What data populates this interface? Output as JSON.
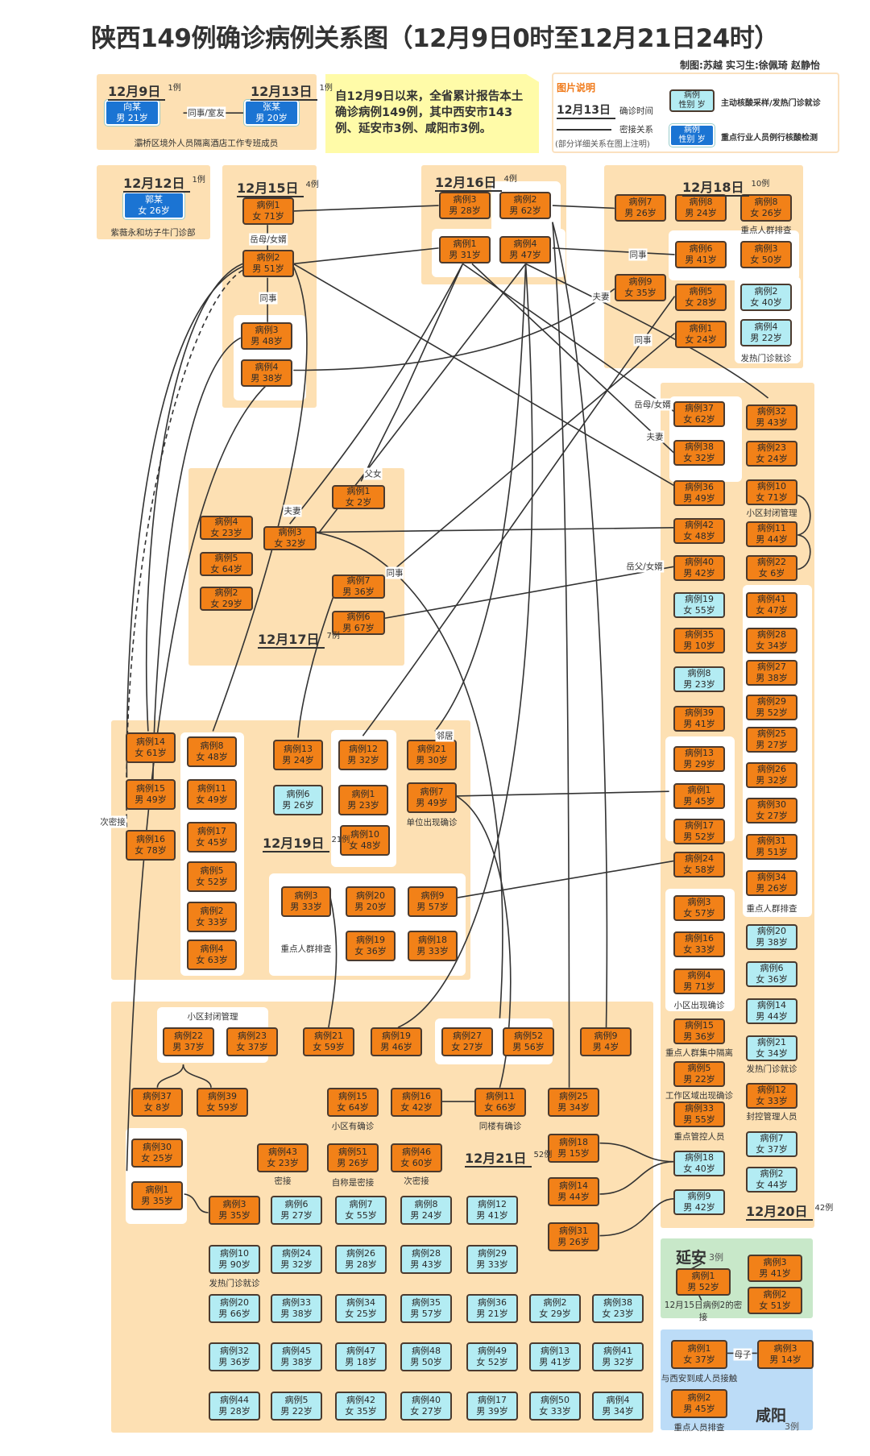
{
  "title": "陕西149例确诊病例关系图（12月9日0时至12月21日24时）",
  "credits": "制图:苏越  实习生:徐佩琦 赵静怡",
  "summary": "自12月9日以来，全省累计报告本土确诊病例149例，其中西安市143例、延安市3例、咸阳市3例。",
  "legend": {
    "title": "图片说明",
    "date_sample": "12月13日",
    "date_desc": "确诊时间",
    "line_desc": "密接关系",
    "line_note": "(部分详细关系在图上注明)",
    "swatch_name": "病例",
    "swatch_info": "性别 岁",
    "cyan_desc": "主动核酸采样/发热门诊就诊",
    "blue_desc": "重点行业人员例行核酸检测",
    "colors": {
      "orange": "#f28118",
      "cyan": "#b3ecf3",
      "blue": "#1b74d3",
      "background": "#fde0b3"
    }
  },
  "top": {
    "relation": "同事/室友",
    "note": "灞桥区境外人员隔离酒店工作专班成员"
  },
  "s1209": {
    "date": "12月9日",
    "count": "1例",
    "cases": [
      {
        "name": "向某",
        "info": "男 21岁",
        "style": "blue"
      }
    ]
  },
  "s1213": {
    "date": "12月13日",
    "count": "1例",
    "cases": [
      {
        "name": "张某",
        "info": "男 20岁",
        "style": "blue"
      }
    ]
  },
  "s1212": {
    "date": "12月12日",
    "count": "1例",
    "note": "紫薇永和坊子牛门诊部",
    "cases": [
      {
        "name": "郭某",
        "info": "女 26岁",
        "style": "blue"
      }
    ]
  },
  "s1215": {
    "date": "12月15日",
    "count": "4例",
    "labels": [
      "岳母/女婿",
      "同事"
    ],
    "cases": [
      {
        "name": "病例1",
        "info": "女 71岁",
        "style": "orange"
      },
      {
        "name": "病例2",
        "info": "男 51岁",
        "style": "orange"
      },
      {
        "name": "病例3",
        "info": "男 48岁",
        "style": "orange"
      },
      {
        "name": "病例4",
        "info": "男 38岁",
        "style": "orange"
      }
    ]
  },
  "s1216": {
    "date": "12月16日",
    "count": "4例",
    "cases": [
      {
        "name": "病例3",
        "info": "男 28岁",
        "style": "orange"
      },
      {
        "name": "病例2",
        "info": "男 62岁",
        "style": "orange"
      },
      {
        "name": "病例1",
        "info": "男 31岁",
        "style": "orange"
      },
      {
        "name": "病例4",
        "info": "男 47岁",
        "style": "orange"
      }
    ]
  },
  "s1218": {
    "date": "12月18日",
    "count": "10例",
    "notes": [
      "重点人群排查",
      "发热门诊就诊"
    ],
    "labels": [
      "同事",
      "夫妻",
      "同事"
    ],
    "cases": [
      {
        "name": "病例7",
        "info": "男 26岁",
        "style": "orange"
      },
      {
        "name": "病例8",
        "info": "男 24岁",
        "style": "orange"
      },
      {
        "name": "病例8",
        "info": "女 26岁",
        "style": "orange"
      },
      {
        "name": "病例6",
        "info": "男 41岁",
        "style": "orange"
      },
      {
        "name": "病例3",
        "info": "女 50岁",
        "style": "orange"
      },
      {
        "name": "病例9",
        "info": "女 35岁",
        "style": "orange"
      },
      {
        "name": "病例5",
        "info": "女 28岁",
        "style": "orange"
      },
      {
        "name": "病例1",
        "info": "女 24岁",
        "style": "orange"
      },
      {
        "name": "病例2",
        "info": "女 40岁",
        "style": "cyan"
      },
      {
        "name": "病例4",
        "info": "男 22岁",
        "style": "cyan"
      }
    ]
  },
  "s1217": {
    "date": "12月17日",
    "count": "7例",
    "labels": [
      "夫妻",
      "父女",
      "同事"
    ],
    "cases": [
      {
        "name": "病例4",
        "info": "女 23岁",
        "style": "orange"
      },
      {
        "name": "病例5",
        "info": "女 64岁",
        "style": "orange"
      },
      {
        "name": "病例2",
        "info": "女 29岁",
        "style": "orange"
      },
      {
        "name": "病例3",
        "info": "女 32岁",
        "style": "orange"
      },
      {
        "name": "病例1",
        "info": "女 2岁",
        "style": "orange"
      },
      {
        "name": "病例7",
        "info": "男 36岁",
        "style": "orange"
      },
      {
        "name": "病例6",
        "info": "男 67岁",
        "style": "orange"
      }
    ]
  },
  "s1219": {
    "date": "12月19日",
    "count": "21例",
    "notes": [
      "单位出现确诊",
      "重点人群排查"
    ],
    "labels": [
      "次密接",
      "邻居"
    ],
    "cases": [
      {
        "name": "病例14",
        "info": "女 61岁",
        "style": "orange"
      },
      {
        "name": "病例15",
        "info": "男 49岁",
        "style": "orange"
      },
      {
        "name": "病例16",
        "info": "女 78岁",
        "style": "orange"
      },
      {
        "name": "病例8",
        "info": "女 48岁",
        "style": "orange"
      },
      {
        "name": "病例11",
        "info": "女 49岁",
        "style": "orange"
      },
      {
        "name": "病例17",
        "info": "女 45岁",
        "style": "orange"
      },
      {
        "name": "病例5",
        "info": "女 52岁",
        "style": "orange"
      },
      {
        "name": "病例2",
        "info": "女 33岁",
        "style": "orange"
      },
      {
        "name": "病例4",
        "info": "女 63岁",
        "style": "orange"
      },
      {
        "name": "病例13",
        "info": "男 24岁",
        "style": "orange"
      },
      {
        "name": "病例6",
        "info": "男 26岁",
        "style": "cyan"
      },
      {
        "name": "病例12",
        "info": "男 32岁",
        "style": "orange"
      },
      {
        "name": "病例1",
        "info": "男 23岁",
        "style": "orange"
      },
      {
        "name": "病例10",
        "info": "女 48岁",
        "style": "orange"
      },
      {
        "name": "病例21",
        "info": "男 30岁",
        "style": "orange"
      },
      {
        "name": "病例7",
        "info": "男 49岁",
        "style": "orange"
      },
      {
        "name": "病例3",
        "info": "男 33岁",
        "style": "orange"
      },
      {
        "name": "病例20",
        "info": "男 20岁",
        "style": "orange"
      },
      {
        "name": "病例9",
        "info": "男 57岁",
        "style": "orange"
      },
      {
        "name": "病例19",
        "info": "女 36岁",
        "style": "orange"
      },
      {
        "name": "病例18",
        "info": "男 33岁",
        "style": "orange"
      }
    ]
  },
  "s1220": {
    "date": "12月20日",
    "count": "42例",
    "notes": [
      "小区封闭管理",
      "小区出现确诊",
      "重点人群集中隔离",
      "工作区域出现确诊",
      "重点管控人员",
      "重点人群排查",
      "发热门诊就诊",
      "封控管理人员"
    ],
    "labels": [
      "岳母/女婿",
      "夫妻",
      "岳父/女婿"
    ],
    "cases": [
      {
        "name": "病例37",
        "info": "女 62岁",
        "style": "orange"
      },
      {
        "name": "病例38",
        "info": "女 32岁",
        "style": "orange"
      },
      {
        "name": "病例36",
        "info": "男 49岁",
        "style": "orange"
      },
      {
        "name": "病例42",
        "info": "女 48岁",
        "style": "orange"
      },
      {
        "name": "病例40",
        "info": "男 42岁",
        "style": "orange"
      },
      {
        "name": "病例19",
        "info": "女 55岁",
        "style": "cyan"
      },
      {
        "name": "病例35",
        "info": "男 10岁",
        "style": "orange"
      },
      {
        "name": "病例8",
        "info": "男 23岁",
        "style": "cyan"
      },
      {
        "name": "病例39",
        "info": "男 41岁",
        "style": "orange"
      },
      {
        "name": "病例13",
        "info": "男 29岁",
        "style": "orange"
      },
      {
        "name": "病例1",
        "info": "男 45岁",
        "style": "orange"
      },
      {
        "name": "病例17",
        "info": "男 52岁",
        "style": "orange"
      },
      {
        "name": "病例24",
        "info": "女 58岁",
        "style": "orange"
      },
      {
        "name": "病例3",
        "info": "女 57岁",
        "style": "orange"
      },
      {
        "name": "病例16",
        "info": "女 33岁",
        "style": "orange"
      },
      {
        "name": "病例4",
        "info": "男 71岁",
        "style": "orange"
      },
      {
        "name": "病例15",
        "info": "男 36岁",
        "style": "orange"
      },
      {
        "name": "病例5",
        "info": "男 22岁",
        "style": "orange"
      },
      {
        "name": "病例33",
        "info": "男 55岁",
        "style": "orange"
      },
      {
        "name": "病例18",
        "info": "女 40岁",
        "style": "cyan"
      },
      {
        "name": "病例9",
        "info": "男 42岁",
        "style": "cyan"
      },
      {
        "name": "病例32",
        "info": "男 43岁",
        "style": "orange"
      },
      {
        "name": "病例23",
        "info": "女 24岁",
        "style": "orange"
      },
      {
        "name": "病例10",
        "info": "女 71岁",
        "style": "orange"
      },
      {
        "name": "病例11",
        "info": "男 44岁",
        "style": "orange"
      },
      {
        "name": "病例22",
        "info": "女 6岁",
        "style": "orange"
      },
      {
        "name": "病例41",
        "info": "女 47岁",
        "style": "orange"
      },
      {
        "name": "病例28",
        "info": "女 34岁",
        "style": "orange"
      },
      {
        "name": "病例27",
        "info": "男 38岁",
        "style": "orange"
      },
      {
        "name": "病例29",
        "info": "男 52岁",
        "style": "orange"
      },
      {
        "name": "病例25",
        "info": "男 27岁",
        "style": "orange"
      },
      {
        "name": "病例26",
        "info": "男 32岁",
        "style": "orange"
      },
      {
        "name": "病例30",
        "info": "女 27岁",
        "style": "orange"
      },
      {
        "name": "病例31",
        "info": "男 51岁",
        "style": "orange"
      },
      {
        "name": "病例34",
        "info": "男 26岁",
        "style": "orange"
      },
      {
        "name": "病例20",
        "info": "男 38岁",
        "style": "cyan"
      },
      {
        "name": "病例6",
        "info": "女 36岁",
        "style": "cyan"
      },
      {
        "name": "病例14",
        "info": "男 44岁",
        "style": "cyan"
      },
      {
        "name": "病例21",
        "info": "女 34岁",
        "style": "cyan"
      },
      {
        "name": "病例12",
        "info": "女 33岁",
        "style": "orange"
      },
      {
        "name": "病例7",
        "info": "女 37岁",
        "style": "cyan"
      },
      {
        "name": "病例2",
        "info": "女 44岁",
        "style": "cyan"
      }
    ]
  },
  "s1221": {
    "date": "12月21日",
    "count": "52例",
    "notes": [
      "小区封闭管理",
      "小区有确诊",
      "同楼有确诊",
      "密接",
      "自称是密接",
      "次密接",
      "发热门诊就诊"
    ],
    "cases": [
      {
        "name": "病例22",
        "info": "男 37岁",
        "style": "orange"
      },
      {
        "name": "病例23",
        "info": "女 37岁",
        "style": "orange"
      },
      {
        "name": "病例37",
        "info": "女 8岁",
        "style": "orange"
      },
      {
        "name": "病例39",
        "info": "女 59岁",
        "style": "orange"
      },
      {
        "name": "病例30",
        "info": "女 25岁",
        "style": "orange"
      },
      {
        "name": "病例1",
        "info": "男 35岁",
        "style": "orange"
      },
      {
        "name": "病例3",
        "info": "男 35岁",
        "style": "orange"
      },
      {
        "name": "病例21",
        "info": "女 59岁",
        "style": "orange"
      },
      {
        "name": "病例19",
        "info": "男 46岁",
        "style": "orange"
      },
      {
        "name": "病例27",
        "info": "女 27岁",
        "style": "orange"
      },
      {
        "name": "病例52",
        "info": "男 56岁",
        "style": "orange"
      },
      {
        "name": "病例9",
        "info": "男 4岁",
        "style": "orange"
      },
      {
        "name": "病例15",
        "info": "女 64岁",
        "style": "orange"
      },
      {
        "name": "病例16",
        "info": "女 42岁",
        "style": "orange"
      },
      {
        "name": "病例11",
        "info": "女 66岁",
        "style": "orange"
      },
      {
        "name": "病例25",
        "info": "男 34岁",
        "style": "orange"
      },
      {
        "name": "病例43",
        "info": "女 23岁",
        "style": "orange"
      },
      {
        "name": "病例51",
        "info": "男 26岁",
        "style": "orange"
      },
      {
        "name": "病例46",
        "info": "女 60岁",
        "style": "orange"
      },
      {
        "name": "病例18",
        "info": "男 15岁",
        "style": "orange"
      },
      {
        "name": "病例14",
        "info": "男 44岁",
        "style": "orange"
      },
      {
        "name": "病例31",
        "info": "男 26岁",
        "style": "orange"
      },
      {
        "name": "病例6",
        "info": "男 27岁",
        "style": "cyan"
      },
      {
        "name": "病例7",
        "info": "女 55岁",
        "style": "cyan"
      },
      {
        "name": "病例8",
        "info": "男 24岁",
        "style": "cyan"
      },
      {
        "name": "病例12",
        "info": "男 41岁",
        "style": "cyan"
      },
      {
        "name": "病例10",
        "info": "男 90岁",
        "style": "cyan"
      },
      {
        "name": "病例24",
        "info": "男 32岁",
        "style": "cyan"
      },
      {
        "name": "病例26",
        "info": "男 28岁",
        "style": "cyan"
      },
      {
        "name": "病例28",
        "info": "男 43岁",
        "style": "cyan"
      },
      {
        "name": "病例29",
        "info": "男 33岁",
        "style": "cyan"
      },
      {
        "name": "病例20",
        "info": "男 66岁",
        "style": "cyan"
      },
      {
        "name": "病例33",
        "info": "男 38岁",
        "style": "cyan"
      },
      {
        "name": "病例34",
        "info": "女 25岁",
        "style": "cyan"
      },
      {
        "name": "病例35",
        "info": "男 57岁",
        "style": "cyan"
      },
      {
        "name": "病例36",
        "info": "男 21岁",
        "style": "cyan"
      },
      {
        "name": "病例2",
        "info": "女 29岁",
        "style": "cyan"
      },
      {
        "name": "病例38",
        "info": "女 23岁",
        "style": "cyan"
      },
      {
        "name": "病例32",
        "info": "男 36岁",
        "style": "cyan"
      },
      {
        "name": "病例45",
        "info": "男 38岁",
        "style": "cyan"
      },
      {
        "name": "病例47",
        "info": "男 18岁",
        "style": "cyan"
      },
      {
        "name": "病例48",
        "info": "男 50岁",
        "style": "cyan"
      },
      {
        "name": "病例49",
        "info": "女 52岁",
        "style": "cyan"
      },
      {
        "name": "病例13",
        "info": "男 41岁",
        "style": "cyan"
      },
      {
        "name": "病例41",
        "info": "男 32岁",
        "style": "cyan"
      },
      {
        "name": "病例44",
        "info": "男 28岁",
        "style": "cyan"
      },
      {
        "name": "病例5",
        "info": "男 22岁",
        "style": "cyan"
      },
      {
        "name": "病例42",
        "info": "女 35岁",
        "style": "cyan"
      },
      {
        "name": "病例40",
        "info": "女 27岁",
        "style": "cyan"
      },
      {
        "name": "病例17",
        "info": "男 39岁",
        "style": "cyan"
      },
      {
        "name": "病例50",
        "info": "女 33岁",
        "style": "cyan"
      },
      {
        "name": "病例4",
        "info": "男 34岁",
        "style": "cyan"
      }
    ]
  },
  "yanan": {
    "city": "延安",
    "count": "3例",
    "note": "12月15日病例2的密接",
    "cases": [
      {
        "name": "病例1",
        "info": "男 52岁",
        "style": "orange"
      },
      {
        "name": "病例3",
        "info": "男 41岁",
        "style": "orange"
      },
      {
        "name": "病例2",
        "info": "女 51岁",
        "style": "orange"
      }
    ]
  },
  "xianyang": {
    "city": "咸阳",
    "count": "3例",
    "label": "母子",
    "notes": [
      "与西安到咸人员接触",
      "重点人员排查"
    ],
    "cases": [
      {
        "name": "病例1",
        "info": "女 37岁",
        "style": "orange"
      },
      {
        "name": "病例3",
        "info": "男 14岁",
        "style": "orange"
      },
      {
        "name": "病例2",
        "info": "男 45岁",
        "style": "orange"
      }
    ]
  }
}
